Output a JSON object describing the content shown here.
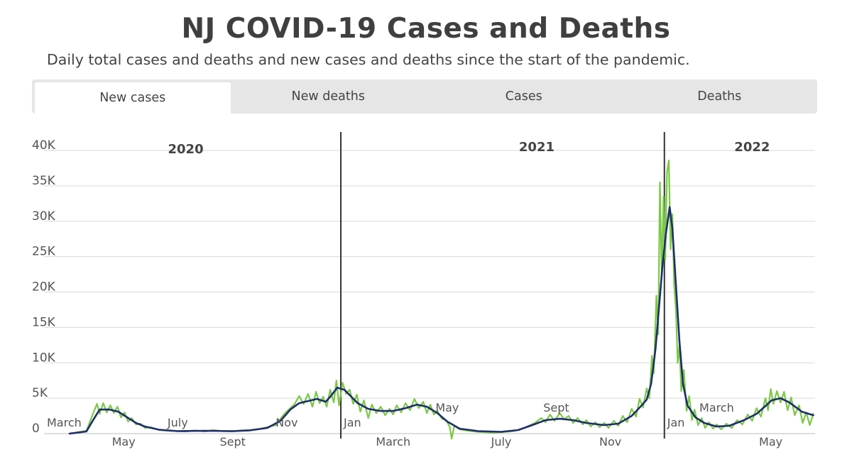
{
  "header": {
    "title": "NJ COVID-19 Cases and Deaths",
    "subtitle": "Daily total cases and deaths and new cases and deaths since the start of the pandemic."
  },
  "tabs": [
    {
      "label": "New cases",
      "active": true
    },
    {
      "label": "New deaths",
      "active": false
    },
    {
      "label": "Cases",
      "active": false
    },
    {
      "label": "Deaths",
      "active": false
    }
  ],
  "colors": {
    "daily": "#7ac943",
    "average": "#1f2d6e",
    "grid": "#d9d9d9",
    "divider": "#333333"
  },
  "chart_data": {
    "type": "line",
    "title": "",
    "xlabel": "",
    "ylabel": "",
    "ylim": [
      0,
      40000
    ],
    "yticks": [
      "0",
      "5K",
      "10K",
      "15K",
      "20K",
      "25K",
      "30K",
      "35K",
      "40K"
    ],
    "x_range": [
      "2020-03-01",
      "2022-06-20"
    ],
    "year_labels": [
      {
        "label": "2020",
        "date": "2020-07-10"
      },
      {
        "label": "2021",
        "date": "2021-08-10"
      },
      {
        "label": "2022",
        "date": "2022-04-10"
      }
    ],
    "year_dividers": [
      "2021-01-01",
      "2022-01-01"
    ],
    "month_labels": [
      {
        "label": "March",
        "date": "2020-03-01",
        "pos": "top"
      },
      {
        "label": "May",
        "date": "2020-05-01",
        "pos": "bottom"
      },
      {
        "label": "July",
        "date": "2020-07-01",
        "pos": "top"
      },
      {
        "label": "Sept",
        "date": "2020-09-01",
        "pos": "bottom"
      },
      {
        "label": "Nov",
        "date": "2020-11-01",
        "pos": "top"
      },
      {
        "label": "Jan",
        "date": "2021-01-01",
        "pos": "top"
      },
      {
        "label": "March",
        "date": "2021-03-01",
        "pos": "bottom"
      },
      {
        "label": "May",
        "date": "2021-05-01",
        "pos": "high"
      },
      {
        "label": "July",
        "date": "2021-07-01",
        "pos": "bottom"
      },
      {
        "label": "Sept",
        "date": "2021-09-01",
        "pos": "high"
      },
      {
        "label": "Nov",
        "date": "2021-11-01",
        "pos": "bottom"
      },
      {
        "label": "Jan",
        "date": "2022-01-01",
        "pos": "top"
      },
      {
        "label": "March",
        "date": "2022-03-01",
        "pos": "high"
      },
      {
        "label": "May",
        "date": "2022-05-01",
        "pos": "bottom"
      }
    ],
    "series": [
      {
        "key": "daily",
        "points": [
          [
            "2020-03-01",
            0
          ],
          [
            "2020-03-20",
            400
          ],
          [
            "2020-03-28",
            3000
          ],
          [
            "2020-04-01",
            4200
          ],
          [
            "2020-04-04",
            2800
          ],
          [
            "2020-04-08",
            4300
          ],
          [
            "2020-04-12",
            3000
          ],
          [
            "2020-04-16",
            4000
          ],
          [
            "2020-04-20",
            2900
          ],
          [
            "2020-04-24",
            3800
          ],
          [
            "2020-04-28",
            2300
          ],
          [
            "2020-05-02",
            3000
          ],
          [
            "2020-05-06",
            1700
          ],
          [
            "2020-05-10",
            2200
          ],
          [
            "2020-05-15",
            1300
          ],
          [
            "2020-05-20",
            1400
          ],
          [
            "2020-05-25",
            800
          ],
          [
            "2020-06-01",
            900
          ],
          [
            "2020-06-10",
            500
          ],
          [
            "2020-06-20",
            400
          ],
          [
            "2020-07-01",
            350
          ],
          [
            "2020-07-10",
            300
          ],
          [
            "2020-07-20",
            450
          ],
          [
            "2020-08-01",
            300
          ],
          [
            "2020-08-10",
            500
          ],
          [
            "2020-08-20",
            350
          ],
          [
            "2020-09-01",
            300
          ],
          [
            "2020-09-10",
            450
          ],
          [
            "2020-09-20",
            500
          ],
          [
            "2020-10-01",
            650
          ],
          [
            "2020-10-10",
            900
          ],
          [
            "2020-10-20",
            1200
          ],
          [
            "2020-10-25",
            2100
          ],
          [
            "2020-10-30",
            2900
          ],
          [
            "2020-11-05",
            3600
          ],
          [
            "2020-11-10",
            4200
          ],
          [
            "2020-11-15",
            5300
          ],
          [
            "2020-11-20",
            4200
          ],
          [
            "2020-11-25",
            5600
          ],
          [
            "2020-11-30",
            3800
          ],
          [
            "2020-12-04",
            5900
          ],
          [
            "2020-12-08",
            4300
          ],
          [
            "2020-12-12",
            5200
          ],
          [
            "2020-12-16",
            3800
          ],
          [
            "2020-12-20",
            6200
          ],
          [
            "2020-12-24",
            4400
          ],
          [
            "2020-12-27",
            7500
          ],
          [
            "2020-12-30",
            4000
          ],
          [
            "2021-01-03",
            7200
          ],
          [
            "2021-01-07",
            5600
          ],
          [
            "2021-01-11",
            6200
          ],
          [
            "2021-01-15",
            4200
          ],
          [
            "2021-01-19",
            5500
          ],
          [
            "2021-01-23",
            3100
          ],
          [
            "2021-01-27",
            4700
          ],
          [
            "2021-02-01",
            2200
          ],
          [
            "2021-02-05",
            4100
          ],
          [
            "2021-02-10",
            2900
          ],
          [
            "2021-02-15",
            3800
          ],
          [
            "2021-02-20",
            2600
          ],
          [
            "2021-02-25",
            3500
          ],
          [
            "2021-03-01",
            2700
          ],
          [
            "2021-03-05",
            4000
          ],
          [
            "2021-03-10",
            3000
          ],
          [
            "2021-03-15",
            4300
          ],
          [
            "2021-03-20",
            3300
          ],
          [
            "2021-03-25",
            4900
          ],
          [
            "2021-03-30",
            3600
          ],
          [
            "2021-04-04",
            4500
          ],
          [
            "2021-04-08",
            2900
          ],
          [
            "2021-04-12",
            4100
          ],
          [
            "2021-04-16",
            2700
          ],
          [
            "2021-04-20",
            3200
          ],
          [
            "2021-04-25",
            2100
          ],
          [
            "2021-04-30",
            1900
          ],
          [
            "2021-05-04",
            900
          ],
          [
            "2021-05-06",
            -700
          ],
          [
            "2021-05-09",
            1100
          ],
          [
            "2021-05-15",
            600
          ],
          [
            "2021-05-25",
            400
          ],
          [
            "2021-06-05",
            250
          ],
          [
            "2021-06-20",
            150
          ],
          [
            "2021-07-01",
            200
          ],
          [
            "2021-07-15",
            350
          ],
          [
            "2021-07-25",
            700
          ],
          [
            "2021-08-01",
            1100
          ],
          [
            "2021-08-08",
            1500
          ],
          [
            "2021-08-15",
            2200
          ],
          [
            "2021-08-20",
            1600
          ],
          [
            "2021-08-25",
            2700
          ],
          [
            "2021-08-30",
            1800
          ],
          [
            "2021-09-05",
            2900
          ],
          [
            "2021-09-10",
            2000
          ],
          [
            "2021-09-15",
            2500
          ],
          [
            "2021-09-20",
            1500
          ],
          [
            "2021-09-25",
            2200
          ],
          [
            "2021-10-01",
            1300
          ],
          [
            "2021-10-05",
            1900
          ],
          [
            "2021-10-10",
            1000
          ],
          [
            "2021-10-15",
            1600
          ],
          [
            "2021-10-20",
            900
          ],
          [
            "2021-10-25",
            1500
          ],
          [
            "2021-10-30",
            800
          ],
          [
            "2021-11-05",
            1800
          ],
          [
            "2021-11-10",
            1100
          ],
          [
            "2021-11-15",
            2500
          ],
          [
            "2021-11-20",
            1600
          ],
          [
            "2021-11-25",
            3500
          ],
          [
            "2021-11-30",
            2400
          ],
          [
            "2021-12-04",
            4900
          ],
          [
            "2021-12-08",
            3700
          ],
          [
            "2021-12-12",
            6400
          ],
          [
            "2021-12-15",
            5000
          ],
          [
            "2021-12-18",
            11000
          ],
          [
            "2021-12-20",
            8500
          ],
          [
            "2021-12-23",
            19500
          ],
          [
            "2021-12-25",
            14000
          ],
          [
            "2021-12-27",
            35500
          ],
          [
            "2021-12-29",
            22000
          ],
          [
            "2021-12-31",
            33500
          ],
          [
            "2022-01-02",
            24500
          ],
          [
            "2022-01-04",
            37000
          ],
          [
            "2022-01-06",
            38600
          ],
          [
            "2022-01-08",
            26000
          ],
          [
            "2022-01-10",
            31000
          ],
          [
            "2022-01-12",
            21000
          ],
          [
            "2022-01-14",
            17500
          ],
          [
            "2022-01-16",
            10000
          ],
          [
            "2022-01-18",
            12500
          ],
          [
            "2022-01-20",
            6000
          ],
          [
            "2022-01-23",
            9000
          ],
          [
            "2022-01-26",
            3200
          ],
          [
            "2022-01-29",
            5300
          ],
          [
            "2022-02-01",
            1900
          ],
          [
            "2022-02-04",
            3400
          ],
          [
            "2022-02-08",
            1200
          ],
          [
            "2022-02-12",
            2200
          ],
          [
            "2022-02-16",
            800
          ],
          [
            "2022-02-20",
            1600
          ],
          [
            "2022-02-25",
            700
          ],
          [
            "2022-03-01",
            1300
          ],
          [
            "2022-03-06",
            600
          ],
          [
            "2022-03-12",
            1400
          ],
          [
            "2022-03-18",
            800
          ],
          [
            "2022-03-24",
            1900
          ],
          [
            "2022-03-30",
            1300
          ],
          [
            "2022-04-05",
            2700
          ],
          [
            "2022-04-10",
            1800
          ],
          [
            "2022-04-15",
            3600
          ],
          [
            "2022-04-20",
            2400
          ],
          [
            "2022-04-25",
            5000
          ],
          [
            "2022-04-28",
            3300
          ],
          [
            "2022-05-01",
            6300
          ],
          [
            "2022-05-04",
            4200
          ],
          [
            "2022-05-08",
            6000
          ],
          [
            "2022-05-12",
            4400
          ],
          [
            "2022-05-16",
            5900
          ],
          [
            "2022-05-20",
            3300
          ],
          [
            "2022-05-24",
            5100
          ],
          [
            "2022-05-28",
            2600
          ],
          [
            "2022-06-02",
            4000
          ],
          [
            "2022-06-06",
            1500
          ],
          [
            "2022-06-10",
            3000
          ],
          [
            "2022-06-14",
            1200
          ],
          [
            "2022-06-18",
            2800
          ]
        ]
      },
      {
        "key": "average",
        "points": [
          [
            "2020-03-01",
            0
          ],
          [
            "2020-03-20",
            300
          ],
          [
            "2020-03-28",
            2000
          ],
          [
            "2020-04-04",
            3400
          ],
          [
            "2020-04-15",
            3400
          ],
          [
            "2020-04-25",
            3100
          ],
          [
            "2020-05-05",
            2300
          ],
          [
            "2020-05-15",
            1500
          ],
          [
            "2020-05-25",
            1000
          ],
          [
            "2020-06-10",
            550
          ],
          [
            "2020-07-01",
            350
          ],
          [
            "2020-08-01",
            400
          ],
          [
            "2020-09-01",
            350
          ],
          [
            "2020-09-20",
            450
          ],
          [
            "2020-10-10",
            800
          ],
          [
            "2020-10-25",
            1800
          ],
          [
            "2020-11-05",
            3400
          ],
          [
            "2020-11-15",
            4300
          ],
          [
            "2020-11-25",
            4600
          ],
          [
            "2020-12-05",
            4900
          ],
          [
            "2020-12-15",
            4500
          ],
          [
            "2020-12-20",
            5200
          ],
          [
            "2020-12-25",
            6000
          ],
          [
            "2020-12-28",
            6500
          ],
          [
            "2021-01-05",
            6200
          ],
          [
            "2021-01-12",
            5300
          ],
          [
            "2021-01-20",
            4300
          ],
          [
            "2021-02-01",
            3500
          ],
          [
            "2021-02-15",
            3200
          ],
          [
            "2021-03-01",
            3200
          ],
          [
            "2021-03-15",
            3600
          ],
          [
            "2021-03-28",
            4100
          ],
          [
            "2021-04-08",
            3800
          ],
          [
            "2021-04-20",
            2900
          ],
          [
            "2021-05-01",
            1700
          ],
          [
            "2021-05-15",
            700
          ],
          [
            "2021-06-05",
            350
          ],
          [
            "2021-07-01",
            250
          ],
          [
            "2021-07-20",
            500
          ],
          [
            "2021-08-05",
            1200
          ],
          [
            "2021-08-20",
            1900
          ],
          [
            "2021-09-05",
            2100
          ],
          [
            "2021-09-20",
            1900
          ],
          [
            "2021-10-05",
            1500
          ],
          [
            "2021-10-25",
            1200
          ],
          [
            "2021-11-10",
            1400
          ],
          [
            "2021-11-25",
            2500
          ],
          [
            "2021-12-05",
            3800
          ],
          [
            "2021-12-12",
            4800
          ],
          [
            "2021-12-17",
            7000
          ],
          [
            "2021-12-22",
            12000
          ],
          [
            "2021-12-26",
            18000
          ],
          [
            "2021-12-30",
            24000
          ],
          [
            "2022-01-03",
            28500
          ],
          [
            "2022-01-07",
            32000
          ],
          [
            "2022-01-10",
            29000
          ],
          [
            "2022-01-14",
            21000
          ],
          [
            "2022-01-18",
            13000
          ],
          [
            "2022-01-22",
            7000
          ],
          [
            "2022-01-27",
            4000
          ],
          [
            "2022-02-05",
            2300
          ],
          [
            "2022-02-15",
            1500
          ],
          [
            "2022-03-01",
            1000
          ],
          [
            "2022-03-15",
            1100
          ],
          [
            "2022-04-01",
            1900
          ],
          [
            "2022-04-15",
            2800
          ],
          [
            "2022-04-25",
            3900
          ],
          [
            "2022-05-02",
            4700
          ],
          [
            "2022-05-12",
            5000
          ],
          [
            "2022-05-22",
            4400
          ],
          [
            "2022-06-05",
            3100
          ],
          [
            "2022-06-18",
            2600
          ]
        ]
      }
    ],
    "grid": true
  }
}
